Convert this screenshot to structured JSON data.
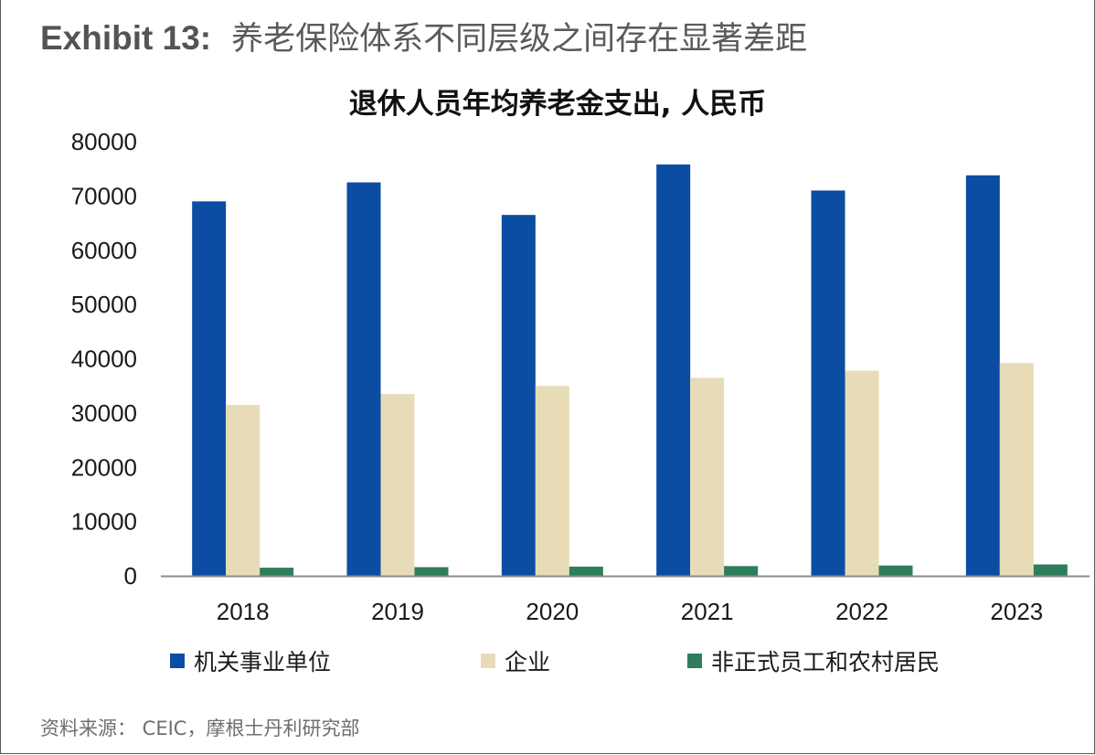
{
  "exhibit": {
    "label": "Exhibit 13:",
    "title": "养老保险体系不同层级之间存在显著差距"
  },
  "source": "资料来源： CEIC，摩根士丹利研究部",
  "chart_data": {
    "type": "bar",
    "title": "退休人员年均养老金支出, 人民币",
    "xlabel": "",
    "ylabel": "",
    "categories": [
      "2018",
      "2019",
      "2020",
      "2021",
      "2022",
      "2023"
    ],
    "ylim": [
      0,
      80000
    ],
    "yticks": [
      0,
      10000,
      20000,
      30000,
      40000,
      50000,
      60000,
      70000,
      80000
    ],
    "ytick_labels": [
      "0",
      "10000",
      "20000",
      "30000",
      "40000",
      "50000",
      "60000",
      "70000",
      "80000"
    ],
    "grid": false,
    "legend_position": "bottom",
    "series": [
      {
        "name": "机关事业单位",
        "color": "#0b4da2",
        "values": [
          69000,
          72500,
          66500,
          75800,
          71000,
          73800
        ]
      },
      {
        "name": "企业",
        "color": "#e8dcb8",
        "values": [
          31500,
          33500,
          35000,
          36500,
          37800,
          39200
        ]
      },
      {
        "name": "非正式员工和农村居民",
        "color": "#2e7d5b",
        "values": [
          1500,
          1600,
          1700,
          1800,
          1900,
          2100
        ]
      }
    ]
  }
}
